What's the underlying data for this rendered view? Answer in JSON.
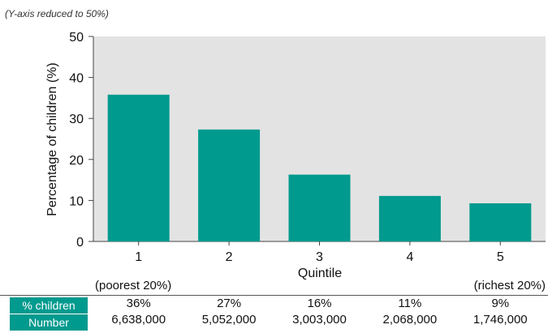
{
  "note": "(Y-axis reduced to 50%)",
  "chart_data": {
    "type": "bar",
    "categories": [
      "1",
      "2",
      "3",
      "4",
      "5"
    ],
    "values": [
      35.8,
      27.3,
      16.3,
      11.1,
      9.3
    ],
    "xlabel": "Quintile",
    "ylabel": "Percentage of children (%)",
    "ylim": [
      0,
      50
    ],
    "yticks": [
      0,
      10,
      20,
      30,
      40,
      50
    ],
    "grid": false,
    "bar_color": "#009a8e",
    "plot_background": "#e3e3e3",
    "end_labels": {
      "left": "(poorest 20%)",
      "right": "(richest 20%)"
    }
  },
  "table": {
    "row_labels": [
      "% children",
      "Number"
    ],
    "percent": [
      "36%",
      "27%",
      "16%",
      "11%",
      "9%"
    ],
    "number": [
      "6,638,000",
      "5,052,000",
      "3,003,000",
      "2,068,000",
      "1,746,000"
    ]
  }
}
